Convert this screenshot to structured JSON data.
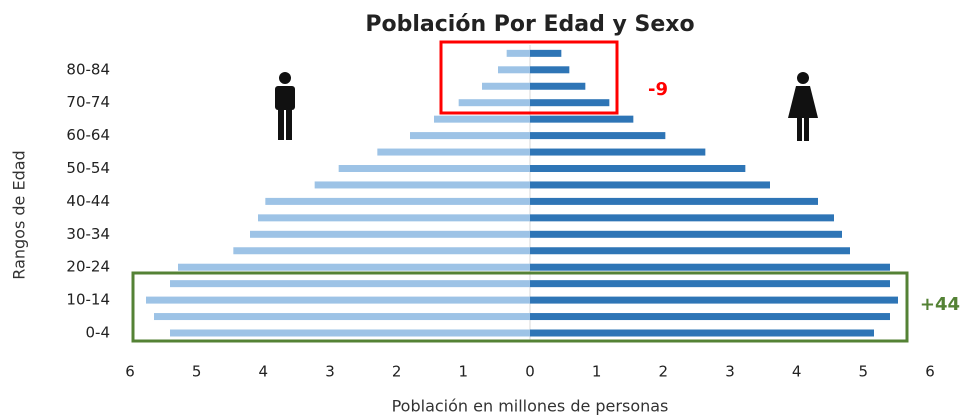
{
  "chart_data": {
    "type": "bar",
    "orientation": "horizontal",
    "title": "Población Por Edad y Sexo",
    "x_label": "Población en millones de personas",
    "y_label": "Rangos de Edad",
    "categories": [
      "0-4",
      null,
      "10-14",
      null,
      "20-24",
      null,
      "30-34",
      null,
      "40-44",
      null,
      "50-54",
      null,
      "60-64",
      null,
      "70-74",
      null,
      "80-84",
      null
    ],
    "series": [
      {
        "color": "#9dc3e6",
        "values": [
          -5.4,
          -5.64,
          -5.76,
          -5.4,
          -5.28,
          -4.45,
          -4.2,
          -4.08,
          -3.97,
          -3.23,
          -2.87,
          -2.29,
          -1.8,
          -1.44,
          -1.07,
          -0.72,
          -0.48,
          -0.35
        ]
      },
      {
        "color": "#2e75b6",
        "values": [
          5.16,
          5.4,
          5.52,
          5.4,
          5.4,
          4.8,
          4.68,
          4.56,
          4.32,
          3.6,
          3.23,
          2.63,
          2.03,
          1.55,
          1.19,
          0.83,
          0.59,
          0.47
        ]
      }
    ],
    "xlim": [
      -6,
      6
    ],
    "xticks": [
      {
        "value": -6,
        "label": "6"
      },
      {
        "value": -5,
        "label": "5"
      },
      {
        "value": -4,
        "label": "4"
      },
      {
        "value": -3,
        "label": "3"
      },
      {
        "value": -2,
        "label": "2"
      },
      {
        "value": -1,
        "label": "1"
      },
      0,
      1,
      2,
      3,
      4,
      5,
      6
    ],
    "annotations": [
      {
        "text": "-9",
        "color": "#ff0000"
      },
      {
        "text": "+44",
        "color": "#548235"
      }
    ]
  }
}
